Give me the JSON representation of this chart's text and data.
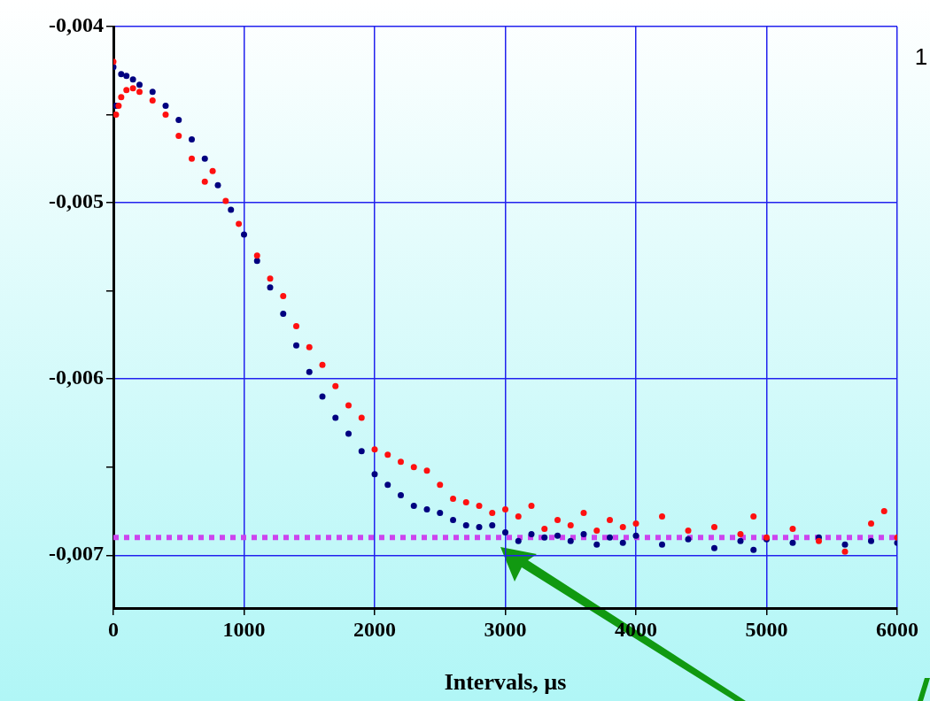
{
  "chart_data": {
    "type": "scatter",
    "xlabel": "Intervals, µs",
    "annotations": [
      "1"
    ],
    "xlim": [
      0,
      6000
    ],
    "xticks": [
      0,
      1000,
      2000,
      3000,
      4000,
      5000,
      6000
    ],
    "ylim": [
      -0.0073,
      -0.004
    ],
    "yticks": [
      {
        "value": -0.004,
        "label": "-0,004"
      },
      {
        "value": -0.0045,
        "label": null
      },
      {
        "value": -0.005,
        "label": "-0,005"
      },
      {
        "value": -0.0055,
        "label": null
      },
      {
        "value": -0.006,
        "label": "-0,006"
      },
      {
        "value": -0.0065,
        "label": null
      },
      {
        "value": -0.007,
        "label": "-0,007"
      }
    ],
    "grid": true,
    "legend": false,
    "marker": "circle",
    "ref_lines": [
      {
        "axis": "y",
        "value": -0.0069,
        "color": "#cc44ee",
        "line_style": "dotted"
      }
    ],
    "series": [
      {
        "color": "#ff1010",
        "x": [
          0,
          20,
          40,
          60,
          100,
          150,
          200,
          300,
          400,
          500,
          600,
          700,
          760,
          860,
          960,
          1100,
          1200,
          1300,
          1400,
          1500,
          1600,
          1700,
          1800,
          1900,
          2000,
          2100,
          2200,
          2300,
          2400,
          2500,
          2600,
          2700,
          2800,
          2900,
          3000,
          3100,
          3200,
          3300,
          3400,
          3500,
          3600,
          3700,
          3800,
          3900,
          4000,
          4200,
          4400,
          4600,
          4800,
          4900,
          5000,
          5200,
          5400,
          5600,
          5800,
          5900,
          6000
        ],
        "values": [
          -0.0042,
          -0.0045,
          -0.00445,
          -0.0044,
          -0.00436,
          -0.00435,
          -0.00437,
          -0.00442,
          -0.0045,
          -0.00462,
          -0.00475,
          -0.00488,
          -0.00482,
          -0.00499,
          -0.00512,
          -0.0053,
          -0.00543,
          -0.00553,
          -0.0057,
          -0.00582,
          -0.00592,
          -0.00604,
          -0.00615,
          -0.00622,
          -0.0064,
          -0.00643,
          -0.00647,
          -0.0065,
          -0.00652,
          -0.0066,
          -0.00668,
          -0.0067,
          -0.00672,
          -0.00676,
          -0.00674,
          -0.00678,
          -0.00672,
          -0.00685,
          -0.0068,
          -0.00683,
          -0.00676,
          -0.00686,
          -0.0068,
          -0.00684,
          -0.00682,
          -0.00678,
          -0.00686,
          -0.00684,
          -0.00688,
          -0.00678,
          -0.0069,
          -0.00685,
          -0.00692,
          -0.00698,
          -0.00682,
          -0.00675,
          -0.0069
        ]
      },
      {
        "color": "#000080",
        "x": [
          0,
          20,
          60,
          100,
          150,
          200,
          300,
          400,
          500,
          600,
          700,
          800,
          900,
          1000,
          1100,
          1200,
          1300,
          1400,
          1500,
          1600,
          1700,
          1800,
          1900,
          2000,
          2100,
          2200,
          2300,
          2400,
          2500,
          2600,
          2700,
          2800,
          2900,
          3000,
          3100,
          3200,
          3300,
          3400,
          3500,
          3600,
          3700,
          3800,
          3900,
          4000,
          4200,
          4400,
          4600,
          4800,
          4900,
          5000,
          5200,
          5400,
          5600,
          5800,
          6000
        ],
        "values": [
          -0.00423,
          -0.00445,
          -0.00427,
          -0.00428,
          -0.0043,
          -0.00433,
          -0.00437,
          -0.00445,
          -0.00453,
          -0.00464,
          -0.00475,
          -0.0049,
          -0.00504,
          -0.00518,
          -0.00533,
          -0.00548,
          -0.00563,
          -0.00581,
          -0.00596,
          -0.0061,
          -0.00622,
          -0.00631,
          -0.00641,
          -0.00654,
          -0.0066,
          -0.00666,
          -0.00672,
          -0.00674,
          -0.00676,
          -0.0068,
          -0.00683,
          -0.00684,
          -0.00683,
          -0.00687,
          -0.00692,
          -0.00688,
          -0.0069,
          -0.00689,
          -0.00692,
          -0.00688,
          -0.00694,
          -0.0069,
          -0.00693,
          -0.00689,
          -0.00694,
          -0.00691,
          -0.00696,
          -0.00692,
          -0.00697,
          -0.00691,
          -0.00693,
          -0.0069,
          -0.00694,
          -0.00692,
          -0.00693
        ]
      }
    ]
  }
}
